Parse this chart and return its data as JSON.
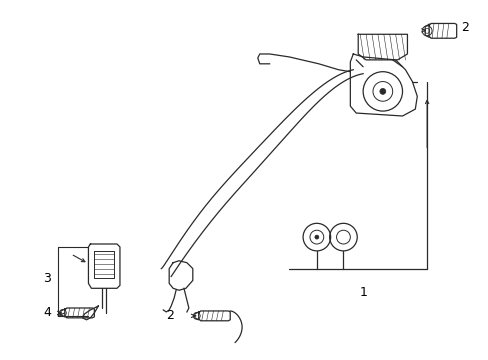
{
  "bg_color": "#ffffff",
  "line_color": "#2a2a2a",
  "label_color": "#000000",
  "figsize": [
    4.89,
    3.6
  ],
  "dpi": 100,
  "xlim": [
    0,
    489
  ],
  "ylim": [
    0,
    360
  ]
}
